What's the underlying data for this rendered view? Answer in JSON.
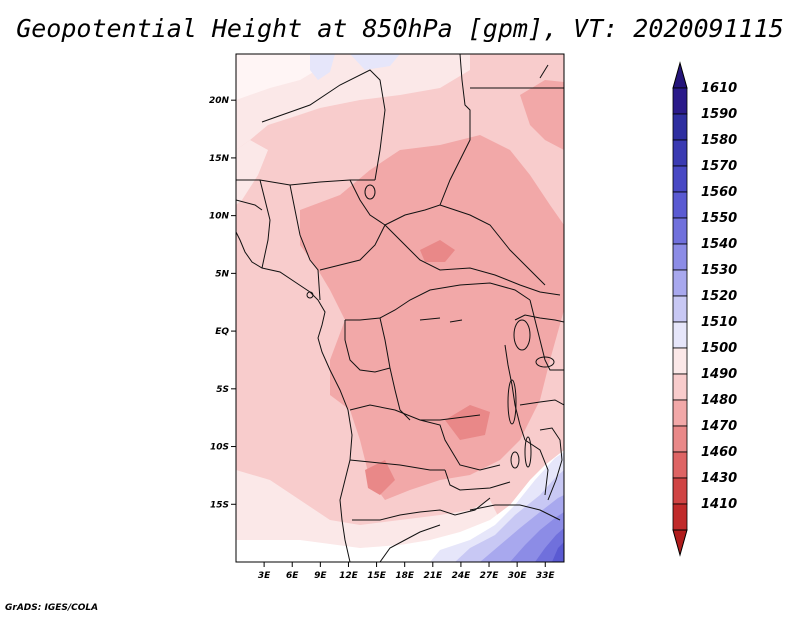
{
  "title": "Geopotential Height at 850hPa [gpm], VT: 2020091115",
  "credit": "GrADS: IGES/COLA",
  "map": {
    "lon_range": [
      0,
      35
    ],
    "lat_range": [
      -20,
      24
    ],
    "lat_labels": [
      "20N",
      "15N",
      "10N",
      "5N",
      "EQ",
      "5S",
      "10S",
      "15S"
    ],
    "lon_labels": [
      "3E",
      "6E",
      "9E",
      "12E",
      "15E",
      "18E",
      "21E",
      "24E",
      "27E",
      "30E",
      "33E"
    ]
  },
  "colorbar": {
    "levels": [
      {
        "label": "1610",
        "color": "#2a1a8a"
      },
      {
        "label": "1590",
        "color": "#2e2ea0"
      },
      {
        "label": "1580",
        "color": "#3a3ab2"
      },
      {
        "label": "1570",
        "color": "#4848c4"
      },
      {
        "label": "1560",
        "color": "#5a5ad2"
      },
      {
        "label": "1550",
        "color": "#7070dc"
      },
      {
        "label": "1540",
        "color": "#8c8ce6"
      },
      {
        "label": "1530",
        "color": "#a8a8ee"
      },
      {
        "label": "1520",
        "color": "#c8c8f4"
      },
      {
        "label": "1510",
        "color": "#e6e6fa"
      },
      {
        "label": "1500",
        "color": "#fbe8e8"
      },
      {
        "label": "1490",
        "color": "#f8cccc"
      },
      {
        "label": "1480",
        "color": "#f2a8a8"
      },
      {
        "label": "1470",
        "color": "#e98888"
      },
      {
        "label": "1460",
        "color": "#de6464"
      },
      {
        "label": "1430",
        "color": "#d04444"
      },
      {
        "label": "1410",
        "color": "#c02a2a"
      }
    ],
    "bottom_color": "#b01c1c",
    "top_color": "#25157a"
  }
}
